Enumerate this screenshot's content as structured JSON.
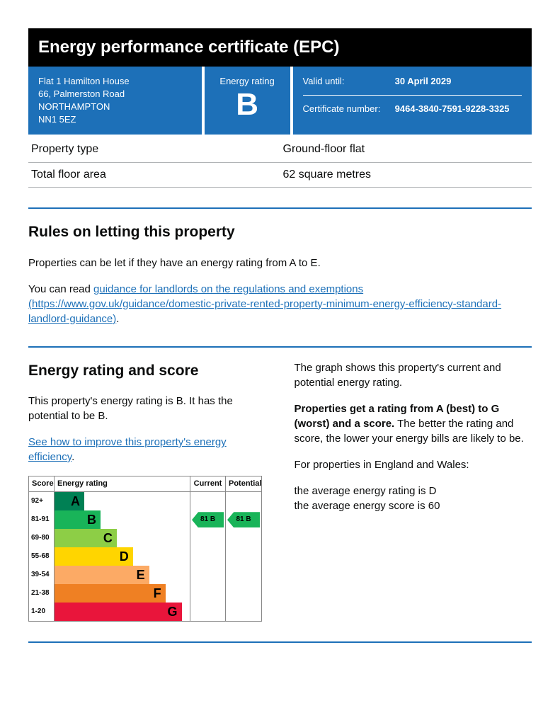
{
  "title": "Energy performance certificate (EPC)",
  "address": {
    "line1": "Flat 1 Hamilton House",
    "line2": "66, Palmerston Road",
    "city": "NORTHAMPTON",
    "postcode": "NN1 5EZ"
  },
  "rating_label": "Energy rating",
  "rating_letter": "B",
  "valid_label": "Valid until:",
  "valid_value": "30 April 2029",
  "cert_label": "Certificate number:",
  "cert_value": "9464-3840-7591-9228-3325",
  "prop_type_label": "Property type",
  "prop_type_value": "Ground-floor flat",
  "floor_area_label": "Total floor area",
  "floor_area_value": "62 square metres",
  "letting": {
    "heading": "Rules on letting this property",
    "intro": "Properties can be let if they have an energy rating from A to E.",
    "read_prefix": "You can read ",
    "link_text": "guidance for landlords on the regulations and exemptions (https://www.gov.uk/guidance/domestic-private-rented-property-minimum-energy-efficiency-standard-landlord-guidance)",
    "read_suffix": "."
  },
  "score_section": {
    "heading": "Energy rating and score",
    "left_p1": "This property's energy rating is B. It has the potential to be B.",
    "improve_link": "See how to improve this property's energy efficiency",
    "improve_suffix": ".",
    "right_p1": "The graph shows this property's current and potential energy rating.",
    "right_bold": "Properties get a rating from A (best) to G (worst) and a score.",
    "right_p2_cont": " The better the rating and score, the lower your energy bills are likely to be.",
    "right_p3": "For properties in England and Wales:",
    "right_avg1": "the average energy rating is D",
    "right_avg2": "the average energy score is 60"
  },
  "chart": {
    "head_score": "Score",
    "head_rating": "Energy rating",
    "head_current": "Current",
    "head_potential": "Potential",
    "bands": [
      {
        "range": "92+",
        "letter": "A",
        "color": "#008054",
        "width_pct": 22
      },
      {
        "range": "81-91",
        "letter": "B",
        "color": "#19b459",
        "width_pct": 34
      },
      {
        "range": "69-80",
        "letter": "C",
        "color": "#8dce46",
        "width_pct": 46
      },
      {
        "range": "55-68",
        "letter": "D",
        "color": "#ffd500",
        "width_pct": 58
      },
      {
        "range": "39-54",
        "letter": "E",
        "color": "#fcaa65",
        "width_pct": 70
      },
      {
        "range": "21-38",
        "letter": "F",
        "color": "#ef8023",
        "width_pct": 82
      },
      {
        "range": "1-20",
        "letter": "G",
        "color": "#e9153b",
        "width_pct": 94
      }
    ],
    "current": {
      "score": 81,
      "letter": "B",
      "band_index": 1,
      "color": "#19b459"
    },
    "potential": {
      "score": 81,
      "letter": "B",
      "band_index": 1,
      "color": "#19b459"
    }
  }
}
